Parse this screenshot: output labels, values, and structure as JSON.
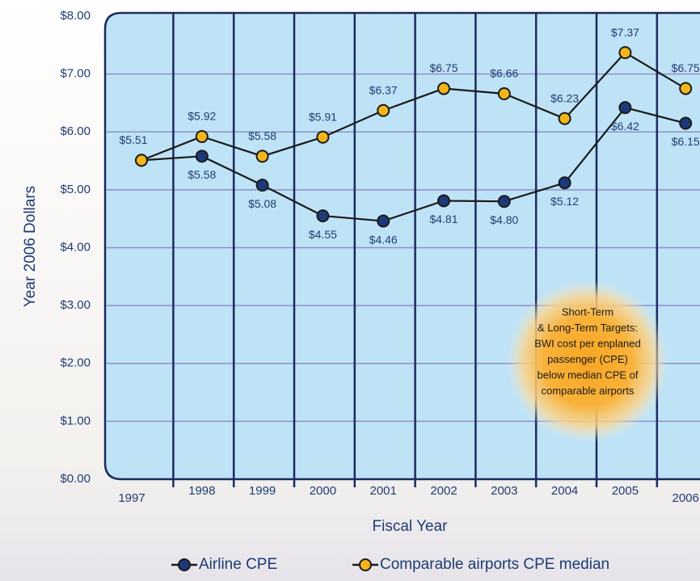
{
  "chart_data": {
    "type": "line",
    "x_label": "Fiscal Year",
    "y_label": "Year 2006 Dollars",
    "categories": [
      "1997",
      "1998",
      "1999",
      "2000",
      "2001",
      "2002",
      "2003",
      "2004",
      "2005",
      "2006"
    ],
    "series": [
      {
        "name": "Airline CPE",
        "color": "#1c3a7a",
        "values": [
          5.51,
          5.58,
          5.08,
          4.55,
          4.46,
          4.81,
          4.8,
          5.12,
          6.42,
          6.15
        ],
        "value_labels": [
          null,
          "$5.58",
          "$5.08",
          "$4.55",
          "$4.46",
          "$4.81",
          "$4.80",
          "$5.12",
          "$6.42",
          "$6.15"
        ]
      },
      {
        "name": "Comparable airports CPE median",
        "color": "#f2b51c",
        "values": [
          5.51,
          5.92,
          5.58,
          5.91,
          6.37,
          6.75,
          6.66,
          6.23,
          7.37,
          6.75
        ],
        "value_labels": [
          "$5.51",
          "$5.92",
          "$5.58",
          "$5.91",
          "$6.37",
          "$6.75",
          "$6.66",
          "$6.23",
          "$7.37",
          "$6.75"
        ]
      }
    ],
    "ylim": [
      0,
      8
    ],
    "yticks": [
      {
        "value": 0,
        "label": "$0.00"
      },
      {
        "value": 1,
        "label": "$1.00"
      },
      {
        "value": 2,
        "label": "$2.00"
      },
      {
        "value": 3,
        "label": "$3.00"
      },
      {
        "value": 4,
        "label": "$4.00"
      },
      {
        "value": 5,
        "label": "$5.00"
      },
      {
        "value": 6,
        "label": "$6.00"
      },
      {
        "value": 7,
        "label": "$7.00"
      },
      {
        "value": 8,
        "label": "$8.00"
      }
    ],
    "grid": true,
    "annotation": [
      "Short-Term",
      "& Long-Term Targets:",
      "BWI cost per enplaned",
      "passenger (CPE)",
      "below median CPE of",
      "comparable airports"
    ]
  }
}
